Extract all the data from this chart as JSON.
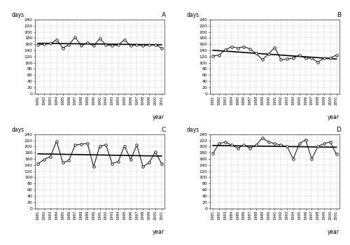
{
  "years": [
    1981,
    1982,
    1983,
    1984,
    1985,
    1986,
    1987,
    1988,
    1989,
    1990,
    1991,
    1992,
    1993,
    1994,
    1995,
    1996,
    1997,
    1998,
    1999,
    2000,
    2001
  ],
  "A_values": [
    158,
    160,
    162,
    175,
    148,
    158,
    183,
    155,
    165,
    155,
    178,
    158,
    155,
    158,
    175,
    155,
    158,
    155,
    158,
    158,
    148
  ],
  "B_values": [
    122,
    125,
    142,
    152,
    148,
    152,
    145,
    130,
    110,
    128,
    150,
    110,
    112,
    115,
    125,
    115,
    115,
    102,
    115,
    115,
    125
  ],
  "C_values": [
    145,
    158,
    168,
    218,
    148,
    155,
    205,
    208,
    210,
    135,
    202,
    205,
    145,
    152,
    202,
    158,
    205,
    135,
    148,
    183,
    145
  ],
  "D_values": [
    178,
    210,
    215,
    205,
    195,
    205,
    195,
    205,
    228,
    215,
    210,
    205,
    200,
    160,
    210,
    222,
    160,
    200,
    210,
    215,
    175
  ],
  "A_slope": -4.8,
  "B_slope": -28.3,
  "C_slope": -7.1,
  "D_slope": -5.7,
  "ylim": [
    0,
    240
  ],
  "yticks": [
    0,
    20,
    40,
    60,
    80,
    100,
    120,
    140,
    160,
    180,
    200,
    220,
    240
  ],
  "panel_labels": [
    "A",
    "B",
    "C",
    "D"
  ],
  "ylabel": "days",
  "xlabel": "year",
  "fig_width": 5.0,
  "fig_height": 3.5,
  "dpi": 100
}
